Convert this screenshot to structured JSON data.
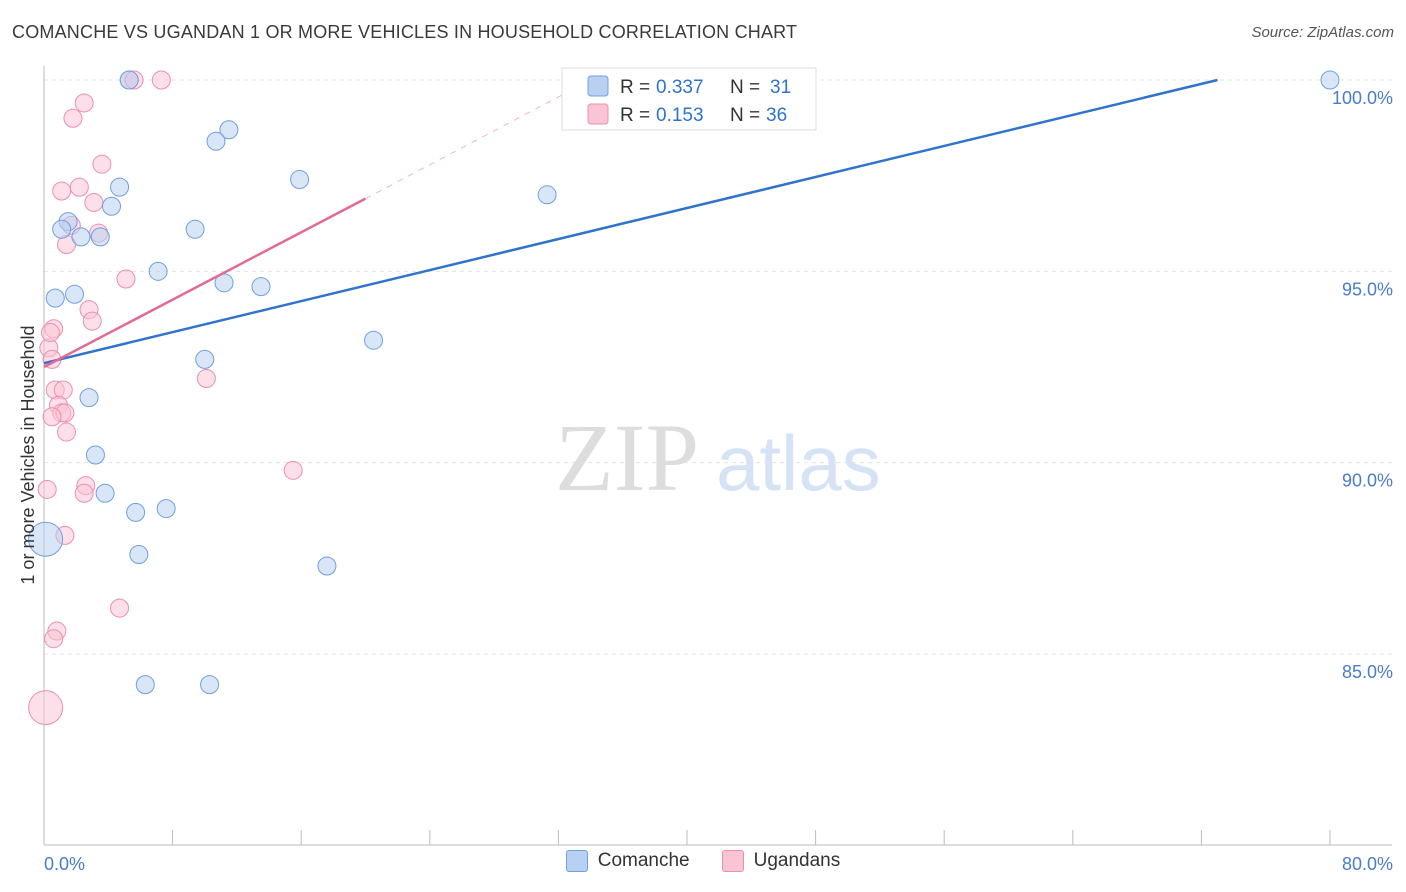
{
  "title": "COMANCHE VS UGANDAN 1 OR MORE VEHICLES IN HOUSEHOLD CORRELATION CHART",
  "source": "Source: ZipAtlas.com",
  "watermark": {
    "zip": "ZIP",
    "atlas": "atlas"
  },
  "colors": {
    "comanche_fill": "#b8d1f3",
    "comanche_stroke": "#6f9fe0",
    "comanche_line": "#2f73cc",
    "ugandan_fill": "#f9c5d5",
    "ugandan_stroke": "#eb8fad",
    "ugandan_line": "#e26a93",
    "grid": "#e3e3e3",
    "tick_text": "#4a7cc9"
  },
  "legend": {
    "rows": [
      {
        "r_label": "R = ",
        "r_value": "0.337",
        "n_label": "N = ",
        "n_value": "31"
      },
      {
        "r_label": "R = ",
        "r_value": "0.153",
        "n_label": "N = ",
        "n_value": "36"
      }
    ]
  },
  "bottom_legend": [
    "Comanche",
    "Ugandans"
  ],
  "chart_data": {
    "type": "scatter",
    "title": "COMANCHE VS UGANDAN 1 OR MORE VEHICLES IN HOUSEHOLD CORRELATION CHART",
    "xlabel": "",
    "ylabel": "1 or more Vehicles in Household",
    "xlim": [
      0,
      80
    ],
    "ylim": [
      80.5,
      100.9
    ],
    "x_tick_labels": [
      "0.0%",
      "80.0%"
    ],
    "y_ticks": [
      100,
      95,
      90,
      85
    ],
    "y_tick_labels": [
      "100.0%",
      "95.0%",
      "90.0%",
      "85.0%"
    ],
    "grid": true,
    "legend_placement": "top-center",
    "series": [
      {
        "name": "Comanche",
        "r": 0.337,
        "n": 31,
        "trend": {
          "x": [
            0,
            73
          ],
          "y": [
            92.6,
            100.0
          ]
        },
        "points": [
          {
            "x": 5.3,
            "y": 100.0
          },
          {
            "x": 33.3,
            "y": 100.0
          },
          {
            "x": 80.0,
            "y": 100.0
          },
          {
            "x": 11.5,
            "y": 98.7
          },
          {
            "x": 10.7,
            "y": 98.4
          },
          {
            "x": 15.9,
            "y": 97.4
          },
          {
            "x": 4.7,
            "y": 97.2
          },
          {
            "x": 31.3,
            "y": 97.0
          },
          {
            "x": 4.2,
            "y": 96.7
          },
          {
            "x": 1.5,
            "y": 96.3
          },
          {
            "x": 1.1,
            "y": 96.1
          },
          {
            "x": 2.3,
            "y": 95.9
          },
          {
            "x": 3.5,
            "y": 95.9
          },
          {
            "x": 9.4,
            "y": 96.1
          },
          {
            "x": 7.1,
            "y": 95.0
          },
          {
            "x": 11.2,
            "y": 94.7
          },
          {
            "x": 13.5,
            "y": 94.6
          },
          {
            "x": 1.9,
            "y": 94.4
          },
          {
            "x": 0.7,
            "y": 94.3
          },
          {
            "x": 20.5,
            "y": 93.2
          },
          {
            "x": 10.0,
            "y": 92.7
          },
          {
            "x": 2.8,
            "y": 91.7
          },
          {
            "x": 3.2,
            "y": 90.2
          },
          {
            "x": 3.8,
            "y": 89.2
          },
          {
            "x": 5.7,
            "y": 88.7
          },
          {
            "x": 7.6,
            "y": 88.8
          },
          {
            "x": 5.9,
            "y": 87.6
          },
          {
            "x": 17.6,
            "y": 87.3
          },
          {
            "x": 6.3,
            "y": 84.2
          },
          {
            "x": 10.3,
            "y": 84.2
          },
          {
            "x": 0.1,
            "y": 88.0
          }
        ]
      },
      {
        "name": "Ugandans",
        "r": 0.153,
        "n": 36,
        "trend": {
          "x": [
            0,
            20
          ],
          "y": [
            92.5,
            96.9
          ]
        },
        "trend_extension": {
          "x": [
            20,
            34
          ],
          "y": [
            96.9,
            100.0
          ]
        },
        "points": [
          {
            "x": 5.3,
            "y": 100.0
          },
          {
            "x": 5.6,
            "y": 100.0
          },
          {
            "x": 7.3,
            "y": 100.0
          },
          {
            "x": 2.5,
            "y": 99.4
          },
          {
            "x": 1.8,
            "y": 99.0
          },
          {
            "x": 3.6,
            "y": 97.8
          },
          {
            "x": 1.1,
            "y": 97.1
          },
          {
            "x": 2.2,
            "y": 97.2
          },
          {
            "x": 3.1,
            "y": 96.8
          },
          {
            "x": 1.7,
            "y": 96.2
          },
          {
            "x": 3.4,
            "y": 96.0
          },
          {
            "x": 1.4,
            "y": 95.7
          },
          {
            "x": 5.1,
            "y": 94.8
          },
          {
            "x": 2.8,
            "y": 94.0
          },
          {
            "x": 3.0,
            "y": 93.7
          },
          {
            "x": 0.6,
            "y": 93.5
          },
          {
            "x": 0.3,
            "y": 93.0
          },
          {
            "x": 0.5,
            "y": 92.7
          },
          {
            "x": 10.1,
            "y": 92.2
          },
          {
            "x": 0.7,
            "y": 91.9
          },
          {
            "x": 1.2,
            "y": 91.9
          },
          {
            "x": 0.9,
            "y": 91.5
          },
          {
            "x": 1.1,
            "y": 91.3
          },
          {
            "x": 1.3,
            "y": 91.3
          },
          {
            "x": 0.5,
            "y": 91.2
          },
          {
            "x": 1.4,
            "y": 90.8
          },
          {
            "x": 15.5,
            "y": 89.8
          },
          {
            "x": 2.6,
            "y": 89.4
          },
          {
            "x": 2.5,
            "y": 89.2
          },
          {
            "x": 0.2,
            "y": 89.3
          },
          {
            "x": 1.3,
            "y": 88.1
          },
          {
            "x": 4.7,
            "y": 86.2
          },
          {
            "x": 0.8,
            "y": 85.6
          },
          {
            "x": 0.6,
            "y": 85.4
          },
          {
            "x": 0.1,
            "y": 83.6
          },
          {
            "x": 0.4,
            "y": 93.4
          }
        ]
      }
    ]
  }
}
